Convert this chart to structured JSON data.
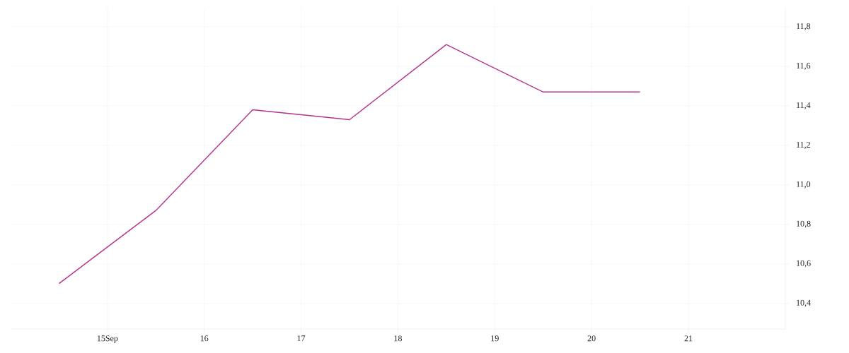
{
  "chart_data": {
    "type": "line",
    "x": [
      14.5,
      15.5,
      16.5,
      17.5,
      18.5,
      19.5,
      20.5
    ],
    "series": [
      {
        "color": "#b5338a",
        "values": [
          10.5,
          10.87,
          11.38,
          11.33,
          11.71,
          11.47,
          11.47
        ]
      }
    ],
    "xlim": [
      14.0,
      22.0
    ],
    "xticks": [
      {
        "value": 15,
        "label": "15Sep"
      },
      16,
      17,
      18,
      19,
      20,
      21
    ],
    "ylim": [
      10.27,
      11.9
    ],
    "yticks": [
      {
        "value": 10.4,
        "label": "10,4"
      },
      {
        "value": 10.6,
        "label": "10,6"
      },
      {
        "value": 10.8,
        "label": "10,8"
      },
      {
        "value": 11.0,
        "label": "11,0"
      },
      {
        "value": 11.2,
        "label": "11,2"
      },
      {
        "value": 11.4,
        "label": "11,4"
      },
      {
        "value": 11.6,
        "label": "11,6"
      },
      {
        "value": 11.8,
        "label": "11,8"
      }
    ],
    "grid": true,
    "marker": "none",
    "line_style": "solid"
  }
}
